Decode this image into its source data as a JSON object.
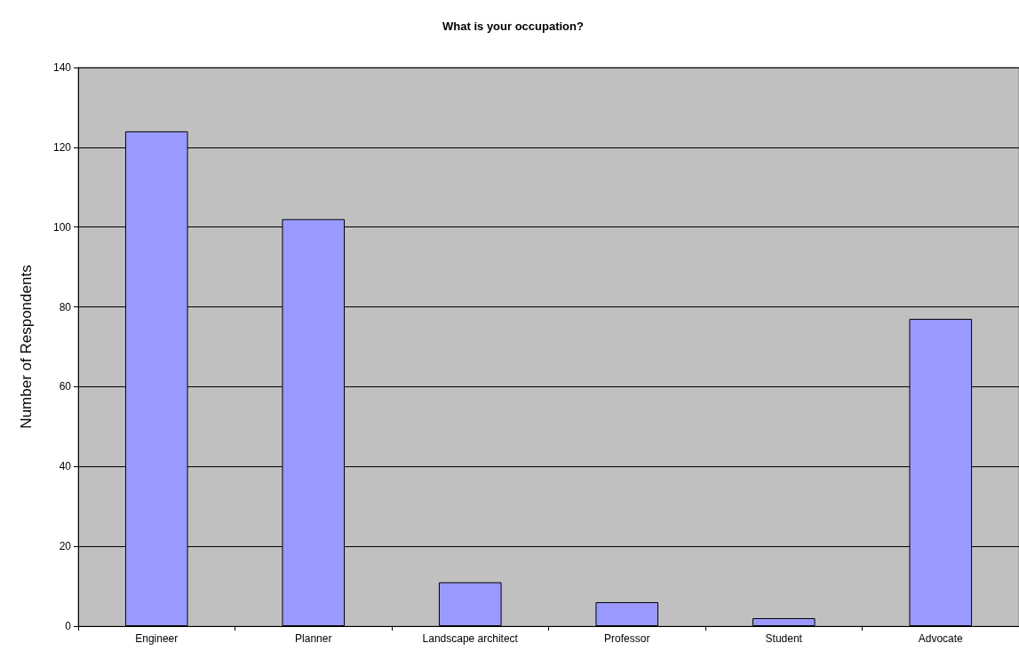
{
  "chart_data": {
    "type": "bar",
    "title": "What is your occupation?",
    "ylabel": "Number of Respondents",
    "categories": [
      "Engineer",
      "Planner",
      "Landscape architect",
      "Professor",
      "Student",
      "Advocate"
    ],
    "values": [
      124,
      102,
      11,
      6,
      2,
      77
    ],
    "color": "#9999ff",
    "ylim": [
      0,
      140
    ],
    "yticks": [
      0,
      20,
      40,
      60,
      80,
      100,
      120,
      140
    ],
    "grid": "y"
  }
}
